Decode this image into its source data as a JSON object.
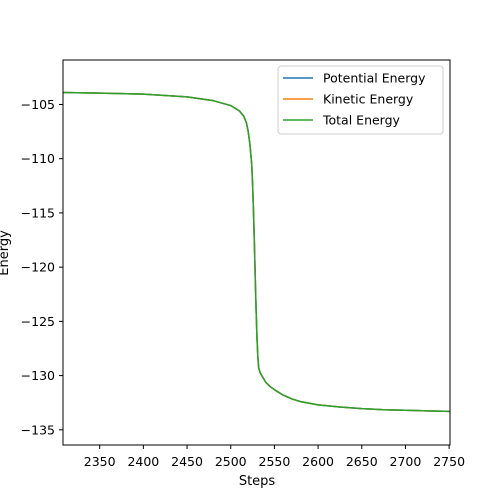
{
  "chart_data": {
    "type": "line",
    "title": "",
    "xlabel": "Steps",
    "ylabel": "Energy",
    "xlim": [
      2308,
      2751
    ],
    "ylim": [
      -136.4,
      -100.9
    ],
    "xticks": [
      2350,
      2400,
      2450,
      2500,
      2550,
      2600,
      2650,
      2700,
      2750
    ],
    "yticks": [
      -135,
      -130,
      -125,
      -120,
      -115,
      -110,
      -105
    ],
    "grid": false,
    "legend_position": "top-right",
    "series": [
      {
        "name": "Potential Energy",
        "color": "#1f77b4",
        "x": [
          2308,
          2350,
          2400,
          2450,
          2480,
          2500,
          2510,
          2515,
          2518,
          2520,
          2522,
          2524,
          2525,
          2526,
          2527,
          2528,
          2529,
          2530,
          2531,
          2532,
          2534,
          2537,
          2540,
          2545,
          2550,
          2560,
          2570,
          2580,
          2590,
          2600,
          2625,
          2650,
          2675,
          2700,
          2725,
          2751
        ],
        "y": [
          -103.9,
          -103.95,
          -104.05,
          -104.3,
          -104.65,
          -105.1,
          -105.6,
          -106.1,
          -106.7,
          -107.5,
          -108.7,
          -110.5,
          -112.3,
          -114.7,
          -117.6,
          -120.8,
          -123.8,
          -126.4,
          -128.2,
          -129.3,
          -129.8,
          -130.2,
          -130.6,
          -131.0,
          -131.3,
          -131.8,
          -132.15,
          -132.4,
          -132.55,
          -132.7,
          -132.9,
          -133.05,
          -133.15,
          -133.2,
          -133.25,
          -133.3
        ]
      },
      {
        "name": "Kinetic Energy",
        "color": "#ff7f0e",
        "x": [
          2308,
          2350,
          2400,
          2450,
          2480,
          2500,
          2510,
          2515,
          2518,
          2520,
          2522,
          2524,
          2525,
          2526,
          2527,
          2528,
          2529,
          2530,
          2531,
          2532,
          2534,
          2537,
          2540,
          2545,
          2550,
          2560,
          2570,
          2580,
          2590,
          2600,
          2625,
          2650,
          2675,
          2700,
          2725,
          2751
        ],
        "y": [
          -103.9,
          -103.95,
          -104.05,
          -104.3,
          -104.65,
          -105.1,
          -105.6,
          -106.1,
          -106.7,
          -107.5,
          -108.7,
          -110.5,
          -112.3,
          -114.7,
          -117.6,
          -120.8,
          -123.8,
          -126.4,
          -128.2,
          -129.3,
          -129.8,
          -130.2,
          -130.6,
          -131.0,
          -131.3,
          -131.8,
          -132.15,
          -132.4,
          -132.55,
          -132.7,
          -132.9,
          -133.05,
          -133.15,
          -133.2,
          -133.25,
          -133.3
        ]
      },
      {
        "name": "Total Energy",
        "color": "#2ca02c",
        "x": [
          2308,
          2350,
          2400,
          2450,
          2480,
          2500,
          2510,
          2515,
          2518,
          2520,
          2522,
          2524,
          2525,
          2526,
          2527,
          2528,
          2529,
          2530,
          2531,
          2532,
          2534,
          2537,
          2540,
          2545,
          2550,
          2560,
          2570,
          2580,
          2590,
          2600,
          2625,
          2650,
          2675,
          2700,
          2725,
          2751
        ],
        "y": [
          -103.9,
          -103.95,
          -104.05,
          -104.3,
          -104.65,
          -105.1,
          -105.6,
          -106.1,
          -106.7,
          -107.5,
          -108.7,
          -110.5,
          -112.3,
          -114.7,
          -117.6,
          -120.8,
          -123.8,
          -126.4,
          -128.2,
          -129.3,
          -129.8,
          -130.2,
          -130.6,
          -131.0,
          -131.3,
          -131.8,
          -132.15,
          -132.4,
          -132.55,
          -132.7,
          -132.9,
          -133.05,
          -133.15,
          -133.2,
          -133.25,
          -133.3
        ]
      }
    ]
  }
}
